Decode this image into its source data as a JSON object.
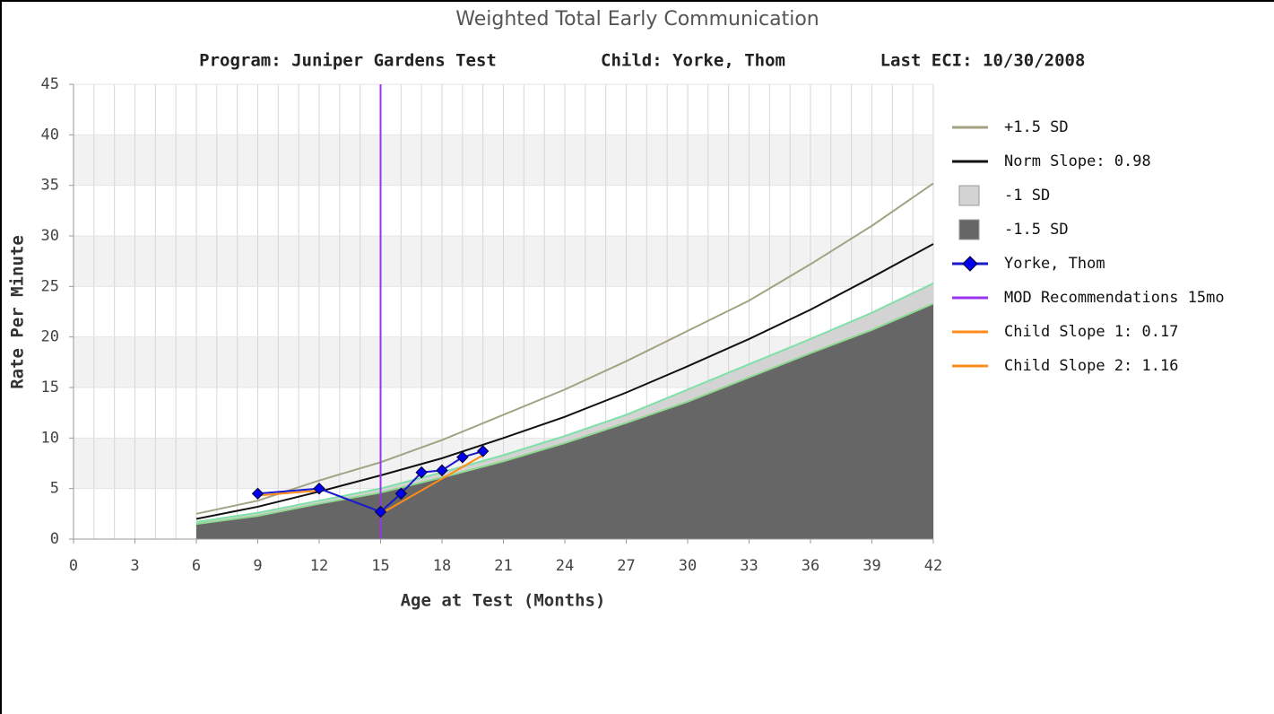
{
  "chart_data": {
    "type": "line",
    "title": "Weighted Total Early Communication",
    "subtitle": [
      "Program: Juniper Gardens Test",
      "Child: Yorke, Thom",
      "Last ECI: 10/30/2008"
    ],
    "x_label": "Age at Test (Months)",
    "y_label": "Rate Per Minute",
    "xlim": [
      0,
      42
    ],
    "xticks": [
      0,
      3,
      6,
      9,
      12,
      15,
      18,
      21,
      24,
      27,
      30,
      33,
      36,
      39,
      42
    ],
    "xminorticks": [
      0,
      1,
      2,
      3,
      4,
      5,
      6,
      7,
      8,
      9,
      10,
      11,
      12,
      13,
      14,
      15,
      16,
      17,
      18,
      19,
      20,
      21,
      22,
      23,
      24,
      25,
      26,
      27,
      28,
      29,
      30,
      31,
      32,
      33,
      34,
      35,
      36,
      37,
      38,
      39,
      40,
      41,
      42
    ],
    "ylim": [
      0,
      45
    ],
    "yticks": [
      0,
      5,
      10,
      15,
      20,
      25,
      30,
      35,
      40,
      45
    ],
    "band_colors": [
      "#ffffff",
      "#f2f2f2"
    ],
    "grid": true,
    "legend": "right",
    "series": [
      {
        "name": "+1.5 SD",
        "kind": "line",
        "color": "#a3a383",
        "x": [
          6,
          9,
          12,
          15,
          18,
          21,
          24,
          27,
          30,
          33,
          36,
          39,
          42
        ],
        "values": [
          2.5,
          3.8,
          5.8,
          7.6,
          9.8,
          12.3,
          14.8,
          17.6,
          20.6,
          23.6,
          27.2,
          31,
          35.2
        ]
      },
      {
        "name": "Norm Slope: 0.98",
        "kind": "line",
        "color": "#111111",
        "x": [
          6,
          9,
          12,
          15,
          18,
          21,
          24,
          27,
          30,
          33,
          36,
          39,
          42
        ],
        "values": [
          2,
          3.2,
          4.7,
          6.3,
          8,
          10,
          12.1,
          14.5,
          17.1,
          19.8,
          22.7,
          25.9,
          29.2
        ]
      },
      {
        "name": "-1 SD",
        "kind": "area",
        "color": "#d3d3d3",
        "edge_color": "#7fe0a8",
        "x": [
          6,
          9,
          12,
          15,
          18,
          21,
          24,
          27,
          30,
          33,
          36,
          39,
          42
        ],
        "values": [
          1.7,
          2.6,
          3.8,
          5,
          6.6,
          8.3,
          10.2,
          12.3,
          14.8,
          17.3,
          19.8,
          22.4,
          25.3
        ]
      },
      {
        "name": "-1.5 SD",
        "kind": "area",
        "color": "#666666",
        "edge_color": "#8fd88f",
        "x": [
          6,
          9,
          12,
          15,
          18,
          21,
          24,
          27,
          30,
          33,
          36,
          39,
          42
        ],
        "values": [
          1.5,
          2.3,
          3.5,
          4.6,
          6.1,
          7.7,
          9.5,
          11.5,
          13.6,
          16,
          18.4,
          20.7,
          23.3
        ]
      },
      {
        "name": "Yorke, Thom",
        "kind": "line_marker",
        "color": "#1a1acc",
        "marker_color": "#0000ee",
        "x": [
          9,
          12,
          15,
          16,
          17,
          18,
          19,
          20
        ],
        "values": [
          4.5,
          5.0,
          2.7,
          4.5,
          6.6,
          6.8,
          8.1,
          8.7
        ]
      },
      {
        "name": "MOD Recommendations 15mo",
        "kind": "vline",
        "color": "#9933ee",
        "x": 15
      },
      {
        "name": "Child Slope 1: 0.17",
        "kind": "line",
        "color": "#ff8c1a",
        "x": [
          9,
          12
        ],
        "values": [
          4.3,
          4.8
        ]
      },
      {
        "name": "Child Slope 2: 1.16",
        "kind": "line",
        "color": "#ff8c1a",
        "x": [
          15,
          20
        ],
        "values": [
          2.5,
          8.3
        ]
      }
    ]
  }
}
